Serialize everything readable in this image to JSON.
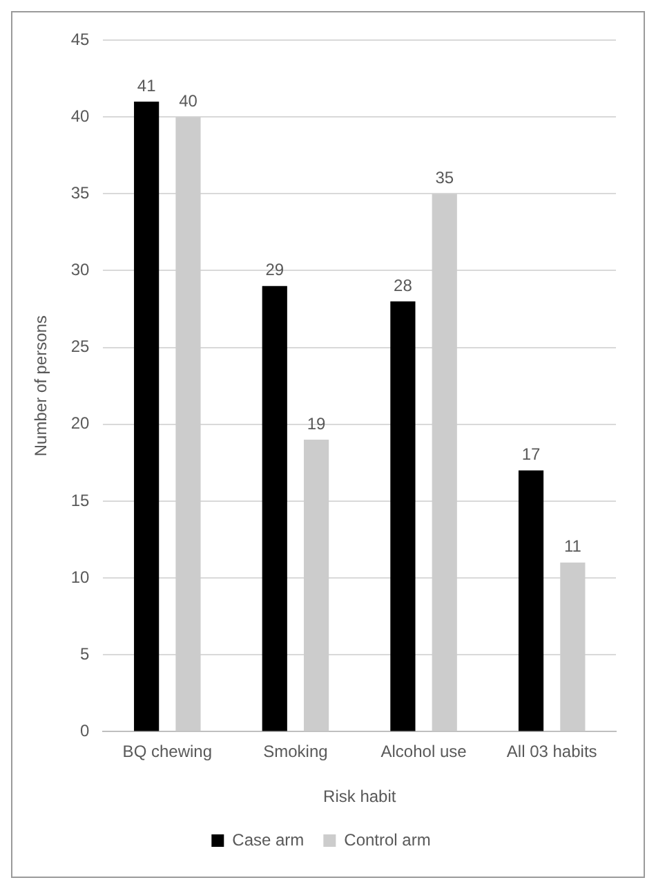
{
  "chart_data": {
    "type": "bar",
    "xlabel": "Risk habit",
    "ylabel": "Number of persons",
    "categories": [
      "BQ chewing",
      "Smoking",
      "Alcohol use",
      "All 03 habits"
    ],
    "series": [
      {
        "name": "Case arm",
        "color": "#000000",
        "values": [
          41,
          29,
          28,
          17
        ]
      },
      {
        "name": "Control arm",
        "color": "#cccccc",
        "values": [
          40,
          19,
          35,
          11
        ]
      }
    ],
    "ylim": [
      0,
      45
    ],
    "yticks": [
      0,
      5,
      10,
      15,
      20,
      25,
      30,
      35,
      40,
      45
    ],
    "grid": "y",
    "legend": "bottom",
    "data_labels": true
  }
}
